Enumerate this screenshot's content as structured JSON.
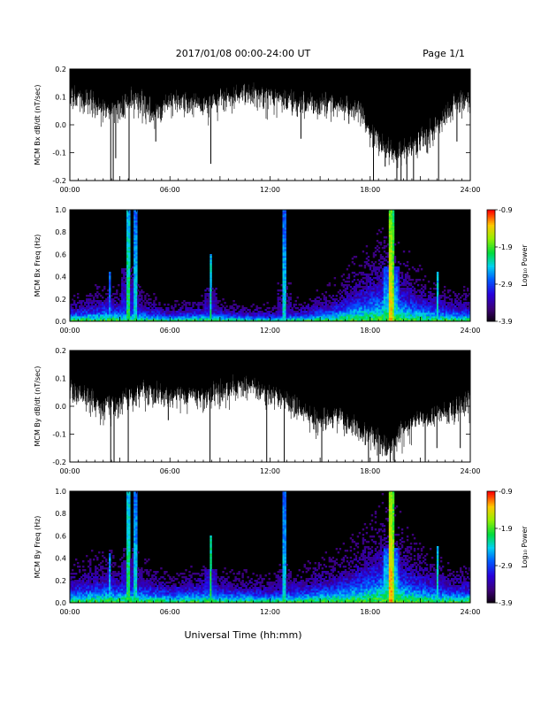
{
  "header": {
    "date_range": "2017/01/08  00:00-24:00 UT",
    "page": "Page 1/1"
  },
  "footer": {
    "xlabel": "Universal Time (hh:mm)"
  },
  "chart_data": [
    {
      "type": "line",
      "ylabel": "MCM Bx dB/dt (nT/sec)",
      "x_ticks": [
        "00:00",
        "06:00",
        "12:00",
        "18:00",
        "24:00"
      ],
      "y_ticks": [
        "-0.2",
        "-0.1",
        "0.0",
        "0.1",
        "0.2"
      ],
      "ylim": [
        -0.2,
        0.2
      ],
      "xlim_hours": [
        0,
        24
      ],
      "color": "#000000",
      "spikes": [
        {
          "t": 2.45,
          "v": -0.2
        },
        {
          "t": 2.6,
          "v": -0.2
        },
        {
          "t": 2.75,
          "v": -0.12
        },
        {
          "t": 3.55,
          "v": -0.2
        },
        {
          "t": 5.15,
          "v": -0.06
        },
        {
          "t": 8.45,
          "v": -0.14
        },
        {
          "t": 13.85,
          "v": -0.05
        },
        {
          "t": 18.2,
          "v": -0.2
        },
        {
          "t": 18.9,
          "v": -0.15
        },
        {
          "t": 19.6,
          "v": -0.2
        },
        {
          "t": 19.85,
          "v": -0.2
        },
        {
          "t": 20.2,
          "v": -0.2
        },
        {
          "t": 20.6,
          "v": -0.2
        },
        {
          "t": 21.4,
          "v": -0.1
        },
        {
          "t": 22.1,
          "v": -0.2
        },
        {
          "t": 23.2,
          "v": -0.06
        }
      ],
      "activity": [
        {
          "t": 0,
          "v": 0.13
        },
        {
          "t": 1,
          "v": 0.12
        },
        {
          "t": 2,
          "v": 0.08
        },
        {
          "t": 3,
          "v": 0.1
        },
        {
          "t": 4,
          "v": 0.12
        },
        {
          "t": 5,
          "v": 0.08
        },
        {
          "t": 6,
          "v": 0.12
        },
        {
          "t": 8,
          "v": 0.1
        },
        {
          "t": 10,
          "v": 0.14
        },
        {
          "t": 12,
          "v": 0.13
        },
        {
          "t": 14,
          "v": 0.11
        },
        {
          "t": 16,
          "v": 0.1
        },
        {
          "t": 17.5,
          "v": 0.08
        },
        {
          "t": 18,
          "v": 0.0
        },
        {
          "t": 19.5,
          "v": -0.08
        },
        {
          "t": 21,
          "v": -0.02
        },
        {
          "t": 22,
          "v": 0.02
        },
        {
          "t": 23,
          "v": 0.1
        },
        {
          "t": 24,
          "v": 0.12
        }
      ]
    },
    {
      "type": "heatmap",
      "ylabel": "MCM Bx Freq (Hz)",
      "x_ticks": [
        "00:00",
        "06:00",
        "12:00",
        "18:00",
        "24:00"
      ],
      "y_ticks": [
        "0.0",
        "0.2",
        "0.4",
        "0.6",
        "0.8",
        "1.0"
      ],
      "ylim": [
        0,
        1.0
      ],
      "xlim_hours": [
        0,
        24
      ],
      "colorbar": {
        "label": "Log₁₀ Power",
        "ticks": [
          "-0.9",
          "-1.9",
          "-2.9",
          "-3.9"
        ],
        "range": [
          -3.9,
          -0.9
        ]
      },
      "base_activity": [
        {
          "t": 0,
          "v": 0.08
        },
        {
          "t": 2,
          "v": 0.12
        },
        {
          "t": 4,
          "v": 0.1
        },
        {
          "t": 6,
          "v": 0.06
        },
        {
          "t": 8,
          "v": 0.08
        },
        {
          "t": 10,
          "v": 0.06
        },
        {
          "t": 12,
          "v": 0.05
        },
        {
          "t": 14,
          "v": 0.07
        },
        {
          "t": 16,
          "v": 0.12
        },
        {
          "t": 17,
          "v": 0.18
        },
        {
          "t": 18,
          "v": 0.24
        },
        {
          "t": 19,
          "v": 0.28
        },
        {
          "t": 20,
          "v": 0.22
        },
        {
          "t": 21,
          "v": 0.16
        },
        {
          "t": 22,
          "v": 0.12
        },
        {
          "t": 23,
          "v": 0.1
        },
        {
          "t": 24,
          "v": 0.1
        }
      ],
      "bursts": [
        {
          "t": 2.4,
          "f": 0.45,
          "p": -2.6
        },
        {
          "t": 3.5,
          "f": 1.0,
          "p": -2.0
        },
        {
          "t": 3.95,
          "f": 1.0,
          "p": -2.3
        },
        {
          "t": 8.45,
          "f": 0.6,
          "p": -2.2
        },
        {
          "t": 12.85,
          "f": 1.0,
          "p": -2.3
        },
        {
          "t": 19.2,
          "f": 1.0,
          "p": -1.3
        },
        {
          "t": 19.35,
          "f": 1.0,
          "p": -1.6
        },
        {
          "t": 22.05,
          "f": 0.45,
          "p": -2.3
        }
      ]
    },
    {
      "type": "line",
      "ylabel": "MCM By dB/dt (nT/sec)",
      "x_ticks": [
        "00:00",
        "06:00",
        "12:00",
        "18:00",
        "24:00"
      ],
      "y_ticks": [
        "-0.2",
        "-0.1",
        "0.0",
        "0.1",
        "0.2"
      ],
      "ylim": [
        -0.2,
        0.2
      ],
      "xlim_hours": [
        0,
        24
      ],
      "color": "#000000",
      "spikes": [
        {
          "t": 2.45,
          "v": -0.2
        },
        {
          "t": 2.65,
          "v": -0.2
        },
        {
          "t": 3.5,
          "v": -0.2
        },
        {
          "t": 5.9,
          "v": -0.05
        },
        {
          "t": 8.4,
          "v": -0.2
        },
        {
          "t": 11.8,
          "v": -0.2
        },
        {
          "t": 12.85,
          "v": -0.2
        },
        {
          "t": 15.1,
          "v": -0.2
        },
        {
          "t": 17.9,
          "v": -0.2
        },
        {
          "t": 18.5,
          "v": -0.2
        },
        {
          "t": 19.2,
          "v": -0.2
        },
        {
          "t": 19.45,
          "v": -0.2
        },
        {
          "t": 21.3,
          "v": -0.2
        },
        {
          "t": 22.0,
          "v": -0.15
        },
        {
          "t": 23.4,
          "v": -0.15
        }
      ],
      "activity": [
        {
          "t": 0,
          "v": 0.1
        },
        {
          "t": 1,
          "v": 0.06
        },
        {
          "t": 2,
          "v": 0.02
        },
        {
          "t": 3,
          "v": 0.04
        },
        {
          "t": 4,
          "v": 0.08
        },
        {
          "t": 5,
          "v": 0.08
        },
        {
          "t": 6,
          "v": 0.06
        },
        {
          "t": 8,
          "v": 0.06
        },
        {
          "t": 10,
          "v": 0.1
        },
        {
          "t": 12,
          "v": 0.08
        },
        {
          "t": 13,
          "v": 0.05
        },
        {
          "t": 14,
          "v": 0.0
        },
        {
          "t": 15,
          "v": -0.02
        },
        {
          "t": 16,
          "v": 0.0
        },
        {
          "t": 17,
          "v": -0.04
        },
        {
          "t": 18,
          "v": -0.08
        },
        {
          "t": 19,
          "v": -0.12
        },
        {
          "t": 20,
          "v": -0.06
        },
        {
          "t": 21,
          "v": -0.02
        },
        {
          "t": 22,
          "v": 0.0
        },
        {
          "t": 23,
          "v": 0.02
        },
        {
          "t": 24,
          "v": 0.05
        }
      ]
    },
    {
      "type": "heatmap",
      "ylabel": "MCM By Freq (Hz)",
      "x_ticks": [
        "00:00",
        "06:00",
        "12:00",
        "18:00",
        "24:00"
      ],
      "y_ticks": [
        "0.0",
        "0.2",
        "0.4",
        "0.6",
        "0.8",
        "1.0"
      ],
      "ylim": [
        0,
        1.0
      ],
      "xlim_hours": [
        0,
        24
      ],
      "colorbar": {
        "label": "Log₁₀ Power",
        "ticks": [
          "-0.9",
          "-1.9",
          "-2.9",
          "-3.9"
        ],
        "range": [
          -3.9,
          -0.9
        ]
      },
      "base_activity": [
        {
          "t": 0,
          "v": 0.12
        },
        {
          "t": 2,
          "v": 0.16
        },
        {
          "t": 4,
          "v": 0.14
        },
        {
          "t": 6,
          "v": 0.1
        },
        {
          "t": 8,
          "v": 0.12
        },
        {
          "t": 10,
          "v": 0.1
        },
        {
          "t": 12,
          "v": 0.09
        },
        {
          "t": 14,
          "v": 0.12
        },
        {
          "t": 16,
          "v": 0.16
        },
        {
          "t": 17,
          "v": 0.2
        },
        {
          "t": 18,
          "v": 0.26
        },
        {
          "t": 19,
          "v": 0.32
        },
        {
          "t": 20,
          "v": 0.24
        },
        {
          "t": 21,
          "v": 0.18
        },
        {
          "t": 22,
          "v": 0.14
        },
        {
          "t": 23,
          "v": 0.12
        },
        {
          "t": 24,
          "v": 0.12
        }
      ],
      "bursts": [
        {
          "t": 2.4,
          "f": 0.45,
          "p": -2.4
        },
        {
          "t": 3.5,
          "f": 1.0,
          "p": -2.0
        },
        {
          "t": 3.95,
          "f": 1.0,
          "p": -2.3
        },
        {
          "t": 8.45,
          "f": 0.6,
          "p": -2.0
        },
        {
          "t": 12.85,
          "f": 1.0,
          "p": -2.3
        },
        {
          "t": 19.2,
          "f": 1.0,
          "p": -1.2
        },
        {
          "t": 19.35,
          "f": 1.0,
          "p": -1.5
        },
        {
          "t": 22.05,
          "f": 0.5,
          "p": -2.2
        }
      ]
    }
  ]
}
